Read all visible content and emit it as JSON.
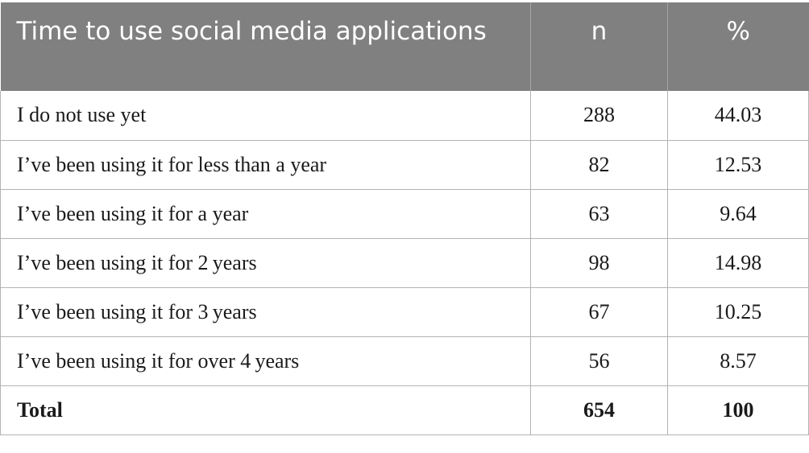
{
  "table": {
    "header": [
      "Time to use social media applications",
      "n",
      "%"
    ],
    "rows": [
      [
        "I do not use yet",
        "288",
        "44.03"
      ],
      [
        "I’ve been using it for less than a year",
        "82",
        "12.53"
      ],
      [
        "I’ve been using it for a year",
        "63",
        "9.64"
      ],
      [
        "I’ve been using it for 2 years",
        "98",
        "14.98"
      ],
      [
        "I’ve been using it for 3 years",
        "67",
        "10.25"
      ],
      [
        "I’ve been using it for over 4 years",
        "56",
        "8.57"
      ],
      [
        "Total",
        "654",
        "100"
      ]
    ]
  },
  "colors": {
    "header_bg": "#808080",
    "header_text": "#ffffff",
    "border": "#b3b3b3"
  }
}
